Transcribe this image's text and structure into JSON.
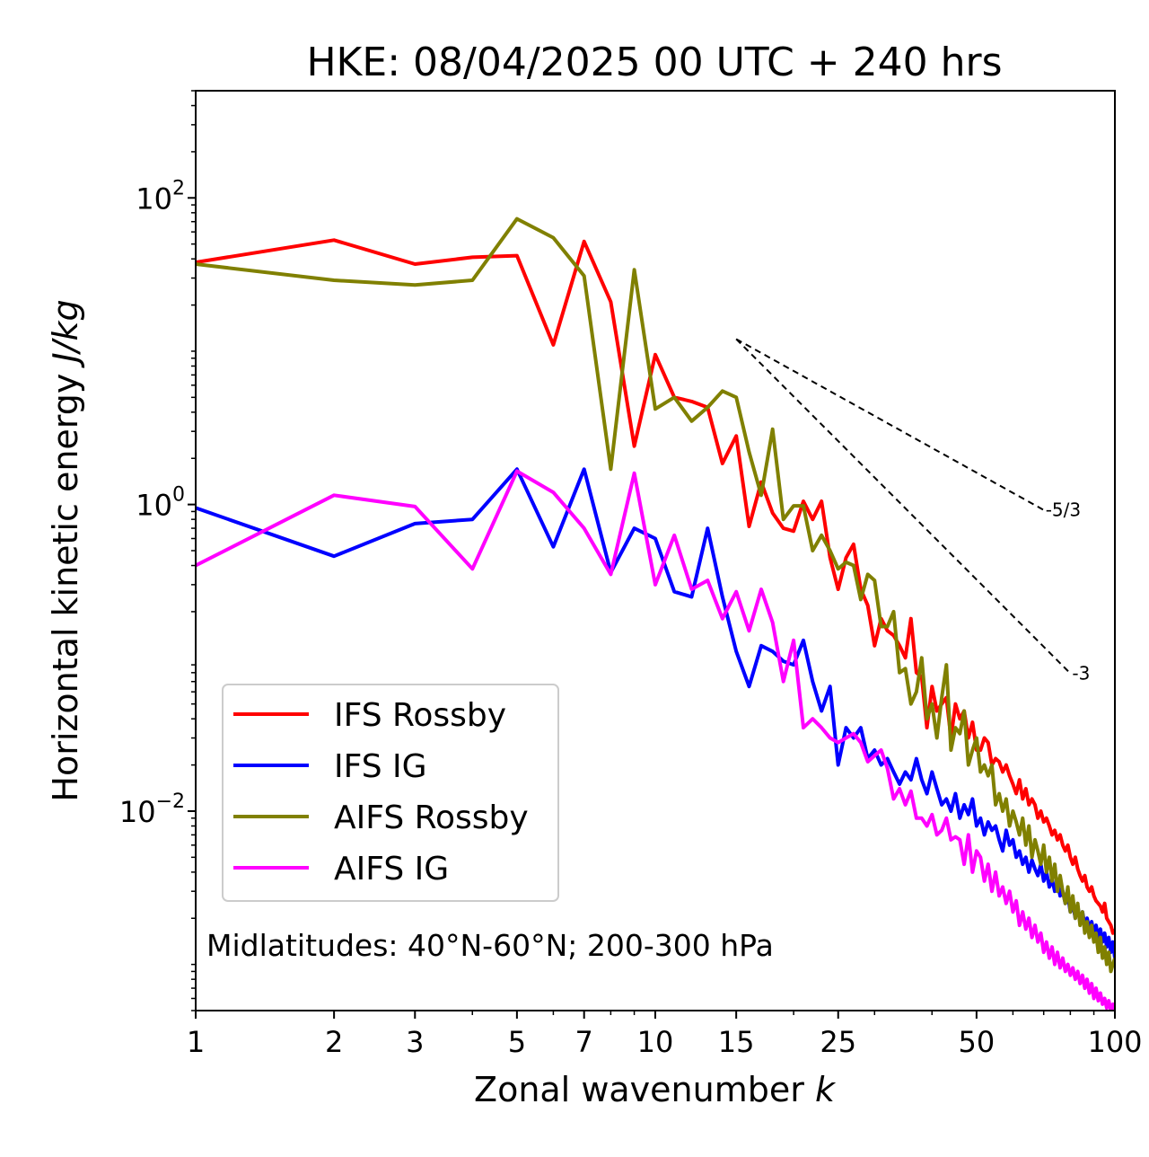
{
  "chart_data": {
    "type": "line",
    "title": "HKE: 08/04/2025 00 UTC + 240 hrs",
    "xlabel_main": "Zonal wavenumber ",
    "xlabel_var": "k",
    "ylabel_main": "Horizontal kinetic energy ",
    "ylabel_unit": "J/kg",
    "xscale": "log",
    "yscale": "log",
    "xlim": [
      1,
      100
    ],
    "ylim": [
      0.0005,
      500
    ],
    "x_ticks": [
      1,
      2,
      3,
      5,
      7,
      10,
      15,
      25,
      50,
      100
    ],
    "x_tick_labels": [
      "1",
      "2",
      "3",
      "5",
      "7",
      "10",
      "15",
      "25",
      "50",
      "100"
    ],
    "y_ticks": [
      {
        "value": 100,
        "base": "10",
        "exp": "2"
      },
      {
        "value": 1,
        "base": "10",
        "exp": "0"
      },
      {
        "value": 0.01,
        "base": "10",
        "exp": "−2"
      }
    ],
    "legend_position": "lower-left",
    "annotation": "Midlatitudes: 40°N-60°N; 200-300 hPa",
    "reference_lines": [
      {
        "label": "-5/3",
        "slope": -1.6667,
        "x_start": 15,
        "y_start": 12,
        "x_end": 70
      },
      {
        "label": "-3",
        "slope": -3,
        "x_start": 15,
        "y_start": 12,
        "x_end": 80
      }
    ],
    "series": [
      {
        "name": "IFS Rossby",
        "color": "#ff0000",
        "x": [
          1,
          2,
          3,
          4,
          5,
          6,
          7,
          8,
          9,
          10,
          11,
          12,
          13,
          14,
          15,
          16,
          17,
          18,
          19,
          20,
          21,
          22,
          23,
          24,
          25,
          26,
          27,
          28,
          29,
          30,
          31,
          32,
          33,
          34,
          35,
          36,
          37,
          38,
          39,
          40,
          41,
          42,
          43,
          44,
          45,
          46,
          47,
          48,
          49,
          50,
          51,
          52,
          53,
          54,
          55,
          56,
          57,
          58,
          59,
          60,
          61,
          62,
          63,
          64,
          65,
          66,
          67,
          68,
          69,
          70,
          71,
          72,
          73,
          74,
          75,
          76,
          77,
          78,
          79,
          80,
          81,
          82,
          83,
          84,
          85,
          86,
          87,
          88,
          89,
          90,
          91,
          92,
          93,
          94,
          95,
          96,
          97,
          98,
          99,
          100
        ],
        "y": [
          38,
          53,
          37,
          41,
          42,
          11,
          52,
          21,
          2.4,
          9.5,
          5,
          4.7,
          4.3,
          1.85,
          2.8,
          0.72,
          1.4,
          0.88,
          0.7,
          0.67,
          1.05,
          0.8,
          1.05,
          0.45,
          0.28,
          0.45,
          0.55,
          0.28,
          0.22,
          0.12,
          0.18,
          0.15,
          0.14,
          0.12,
          0.1,
          0.18,
          0.08,
          0.075,
          0.035,
          0.065,
          0.045,
          0.05,
          0.055,
          0.03,
          0.05,
          0.04,
          0.045,
          0.03,
          0.038,
          0.025,
          0.025,
          0.03,
          0.028,
          0.02,
          0.022,
          0.021,
          0.018,
          0.02,
          0.017,
          0.015,
          0.013,
          0.016,
          0.012,
          0.014,
          0.011,
          0.012,
          0.011,
          0.009,
          0.01,
          0.0085,
          0.009,
          0.008,
          0.007,
          0.0075,
          0.0065,
          0.007,
          0.006,
          0.0055,
          0.006,
          0.005,
          0.0045,
          0.005,
          0.0042,
          0.0038,
          0.0035,
          0.0038,
          0.0032,
          0.003,
          0.0032,
          0.0028,
          0.0026,
          0.0025,
          0.0024,
          0.0022,
          0.0025,
          0.002,
          0.0019,
          0.0018,
          0.0016,
          0.0017
        ]
      },
      {
        "name": "IFS IG",
        "color": "#0000ff",
        "x": [
          1,
          2,
          3,
          4,
          5,
          6,
          7,
          8,
          9,
          10,
          11,
          12,
          13,
          14,
          15,
          16,
          17,
          18,
          19,
          20,
          21,
          22,
          23,
          24,
          25,
          26,
          27,
          28,
          29,
          30,
          31,
          32,
          33,
          34,
          35,
          36,
          37,
          38,
          39,
          40,
          41,
          42,
          43,
          44,
          45,
          46,
          47,
          48,
          49,
          50,
          51,
          52,
          53,
          54,
          55,
          56,
          57,
          58,
          59,
          60,
          61,
          62,
          63,
          64,
          65,
          66,
          67,
          68,
          69,
          70,
          71,
          72,
          73,
          74,
          75,
          76,
          77,
          78,
          79,
          80,
          81,
          82,
          83,
          84,
          85,
          86,
          87,
          88,
          89,
          90,
          91,
          92,
          93,
          94,
          95,
          96,
          97,
          98,
          99,
          100
        ],
        "y": [
          0.95,
          0.46,
          0.75,
          0.8,
          1.7,
          0.53,
          1.7,
          0.36,
          0.7,
          0.6,
          0.27,
          0.25,
          0.7,
          0.25,
          0.11,
          0.065,
          0.12,
          0.11,
          0.095,
          0.09,
          0.13,
          0.07,
          0.045,
          0.065,
          0.02,
          0.035,
          0.03,
          0.035,
          0.022,
          0.025,
          0.02,
          0.022,
          0.018,
          0.015,
          0.018,
          0.016,
          0.022,
          0.016,
          0.013,
          0.018,
          0.014,
          0.011,
          0.012,
          0.01,
          0.013,
          0.009,
          0.011,
          0.0095,
          0.012,
          0.008,
          0.009,
          0.007,
          0.0085,
          0.0075,
          0.008,
          0.0065,
          0.0055,
          0.0075,
          0.006,
          0.0065,
          0.005,
          0.0055,
          0.0045,
          0.005,
          0.004,
          0.0048,
          0.0042,
          0.0038,
          0.0045,
          0.0035,
          0.004,
          0.0032,
          0.0036,
          0.003,
          0.0035,
          0.0028,
          0.003,
          0.0025,
          0.0028,
          0.0022,
          0.0025,
          0.002,
          0.0024,
          0.0019,
          0.0022,
          0.0018,
          0.002,
          0.0017,
          0.0019,
          0.0016,
          0.0018,
          0.0015,
          0.0017,
          0.0014,
          0.0016,
          0.0013,
          0.0015,
          0.0012,
          0.0014,
          0.0011
        ]
      },
      {
        "name": "AIFS Rossby",
        "color": "#808000",
        "x": [
          1,
          2,
          3,
          4,
          5,
          6,
          7,
          8,
          9,
          10,
          11,
          12,
          13,
          14,
          15,
          16,
          17,
          18,
          19,
          20,
          21,
          22,
          23,
          24,
          25,
          26,
          27,
          28,
          29,
          30,
          31,
          32,
          33,
          34,
          35,
          36,
          37,
          38,
          39,
          40,
          41,
          42,
          43,
          44,
          45,
          46,
          47,
          48,
          49,
          50,
          51,
          52,
          53,
          54,
          55,
          56,
          57,
          58,
          59,
          60,
          61,
          62,
          63,
          64,
          65,
          66,
          67,
          68,
          69,
          70,
          71,
          72,
          73,
          74,
          75,
          76,
          77,
          78,
          79,
          80,
          81,
          82,
          83,
          84,
          85,
          86,
          87,
          88,
          89,
          90,
          91,
          92,
          93,
          94,
          95,
          96,
          97,
          98,
          99,
          100
        ],
        "y": [
          37,
          29,
          27,
          29,
          73,
          55,
          31,
          1.7,
          34,
          4.2,
          5,
          3.5,
          4.3,
          5.5,
          5,
          2.2,
          1.15,
          3.1,
          0.8,
          0.98,
          0.98,
          0.5,
          0.63,
          0.5,
          0.38,
          0.42,
          0.4,
          0.24,
          0.35,
          0.32,
          0.16,
          0.16,
          0.2,
          0.08,
          0.085,
          0.05,
          0.06,
          0.1,
          0.04,
          0.05,
          0.03,
          0.055,
          0.09,
          0.025,
          0.035,
          0.032,
          0.045,
          0.02,
          0.025,
          0.03,
          0.018,
          0.02,
          0.017,
          0.02,
          0.011,
          0.013,
          0.01,
          0.012,
          0.008,
          0.01,
          0.0085,
          0.007,
          0.009,
          0.006,
          0.008,
          0.005,
          0.0065,
          0.0055,
          0.0045,
          0.006,
          0.004,
          0.005,
          0.0035,
          0.0045,
          0.003,
          0.0038,
          0.003,
          0.0025,
          0.0032,
          0.0022,
          0.0028,
          0.002,
          0.0025,
          0.0018,
          0.0022,
          0.0016,
          0.0019,
          0.0015,
          0.0018,
          0.0014,
          0.0016,
          0.0012,
          0.0015,
          0.0011,
          0.0013,
          0.001,
          0.0012,
          0.0009,
          0.001,
          0.0011
        ]
      },
      {
        "name": "AIFS IG",
        "color": "#ff00ff",
        "x": [
          1,
          2,
          3,
          4,
          5,
          6,
          7,
          8,
          9,
          10,
          11,
          12,
          13,
          14,
          15,
          16,
          17,
          18,
          19,
          20,
          21,
          22,
          23,
          24,
          25,
          26,
          27,
          28,
          29,
          30,
          31,
          32,
          33,
          34,
          35,
          36,
          37,
          38,
          39,
          40,
          41,
          42,
          43,
          44,
          45,
          46,
          47,
          48,
          49,
          50,
          51,
          52,
          53,
          54,
          55,
          56,
          57,
          58,
          59,
          60,
          61,
          62,
          63,
          64,
          65,
          66,
          67,
          68,
          69,
          70,
          71,
          72,
          73,
          74,
          75,
          76,
          77,
          78,
          79,
          80,
          81,
          82,
          83,
          84,
          85,
          86,
          87,
          88,
          89,
          90,
          91,
          92,
          93,
          94,
          95,
          96,
          97,
          98,
          99,
          100
        ],
        "y": [
          0.4,
          1.15,
          0.97,
          0.38,
          1.65,
          1.2,
          0.7,
          0.35,
          1.6,
          0.3,
          0.63,
          0.28,
          0.32,
          0.18,
          0.27,
          0.15,
          0.28,
          0.17,
          0.07,
          0.13,
          0.035,
          0.04,
          0.035,
          0.03,
          0.028,
          0.03,
          0.032,
          0.028,
          0.021,
          0.023,
          0.025,
          0.019,
          0.012,
          0.014,
          0.011,
          0.0135,
          0.009,
          0.009,
          0.008,
          0.0095,
          0.007,
          0.0075,
          0.009,
          0.0065,
          0.0068,
          0.0065,
          0.0045,
          0.007,
          0.004,
          0.0055,
          0.005,
          0.0035,
          0.0045,
          0.003,
          0.004,
          0.0028,
          0.0032,
          0.0025,
          0.003,
          0.0022,
          0.0026,
          0.0018,
          0.0022,
          0.0017,
          0.002,
          0.0015,
          0.0018,
          0.0014,
          0.0016,
          0.0012,
          0.0014,
          0.0011,
          0.0013,
          0.001,
          0.0012,
          0.00095,
          0.0011,
          0.0009,
          0.001,
          0.00085,
          0.00095,
          0.0008,
          0.0009,
          0.00075,
          0.00085,
          0.0007,
          0.0008,
          0.00065,
          0.00075,
          0.0006,
          0.0007,
          0.00058,
          0.00065,
          0.00055,
          0.0006,
          0.00052,
          0.00058,
          0.0005,
          0.00055,
          0.00048
        ]
      }
    ]
  }
}
